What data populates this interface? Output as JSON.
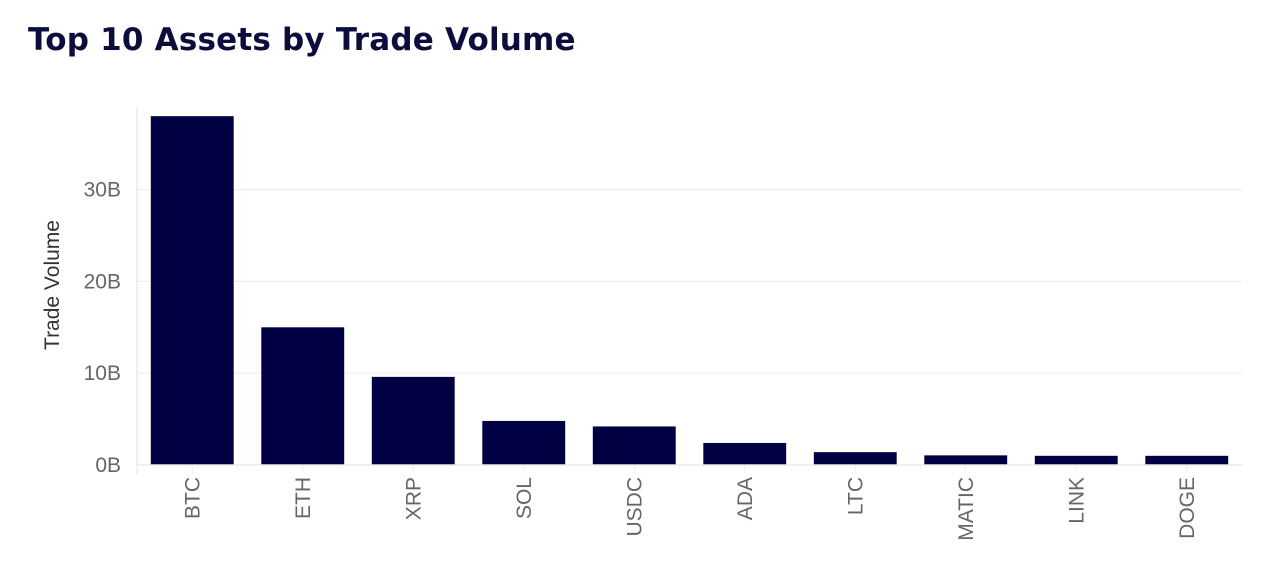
{
  "chart_data": {
    "type": "bar",
    "title": "Top 10 Assets by Trade Volume",
    "xlabel": "",
    "ylabel": "Trade Volume",
    "categories": [
      "BTC",
      "ETH",
      "XRP",
      "SOL",
      "USDC",
      "ADA",
      "LTC",
      "MATIC",
      "LINK",
      "DOGE"
    ],
    "values": [
      38000000000,
      15000000000,
      9600000000,
      4800000000,
      4200000000,
      2400000000,
      1400000000,
      1050000000,
      1000000000,
      1000000000
    ],
    "y_ticks": [
      {
        "value": 0,
        "label": "0B"
      },
      {
        "value": 10000000000,
        "label": "10B"
      },
      {
        "value": 20000000000,
        "label": "20B"
      },
      {
        "value": 30000000000,
        "label": "30B"
      }
    ],
    "ylim": [
      0,
      39000000000
    ],
    "grid": true,
    "bar_color": "#000042"
  }
}
